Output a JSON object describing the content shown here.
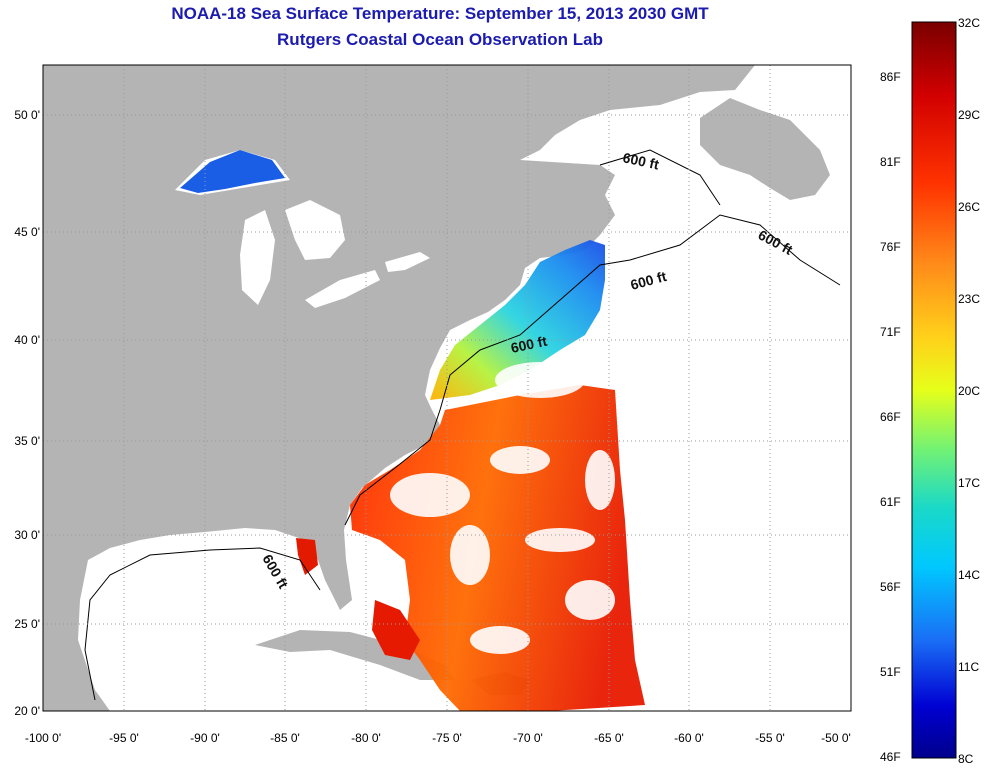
{
  "title": {
    "line1": "NOAA-18 Sea Surface Temperature:  September 15, 2013 2030 GMT",
    "line2": "Rutgers Coastal Ocean Observation Lab"
  },
  "map": {
    "lon_ticks": [
      "-100 0'",
      "-95 0'",
      "-90 0'",
      "-85 0'",
      "-80 0'",
      "-75 0'",
      "-70 0'",
      "-65 0'",
      "-60 0'",
      "-55 0'",
      "-50 0'"
    ],
    "lat_ticks": [
      "20 0'",
      "25 0'",
      "30 0'",
      "35 0'",
      "40 0'",
      "45 0'",
      "50 0'"
    ],
    "contour_label": "600 ft",
    "colors": {
      "land": "#b4b4b4",
      "water": "#ffffff",
      "grid": "#999999"
    }
  },
  "colorbar": {
    "fahrenheit": [
      "86F",
      "81F",
      "76F",
      "71F",
      "66F",
      "61F",
      "56F",
      "51F",
      "46F"
    ],
    "celsius": [
      "32C",
      "29C",
      "26C",
      "23C",
      "20C",
      "17C",
      "14C",
      "11C",
      "8C"
    ],
    "stops": [
      "#7a0000",
      "#d20000",
      "#ff3300",
      "#ff8c1a",
      "#ffd21a",
      "#e6ff1a",
      "#73f273",
      "#1ad9c8",
      "#00c8ff",
      "#1a6ef5",
      "#0000d2",
      "#00008c"
    ]
  }
}
